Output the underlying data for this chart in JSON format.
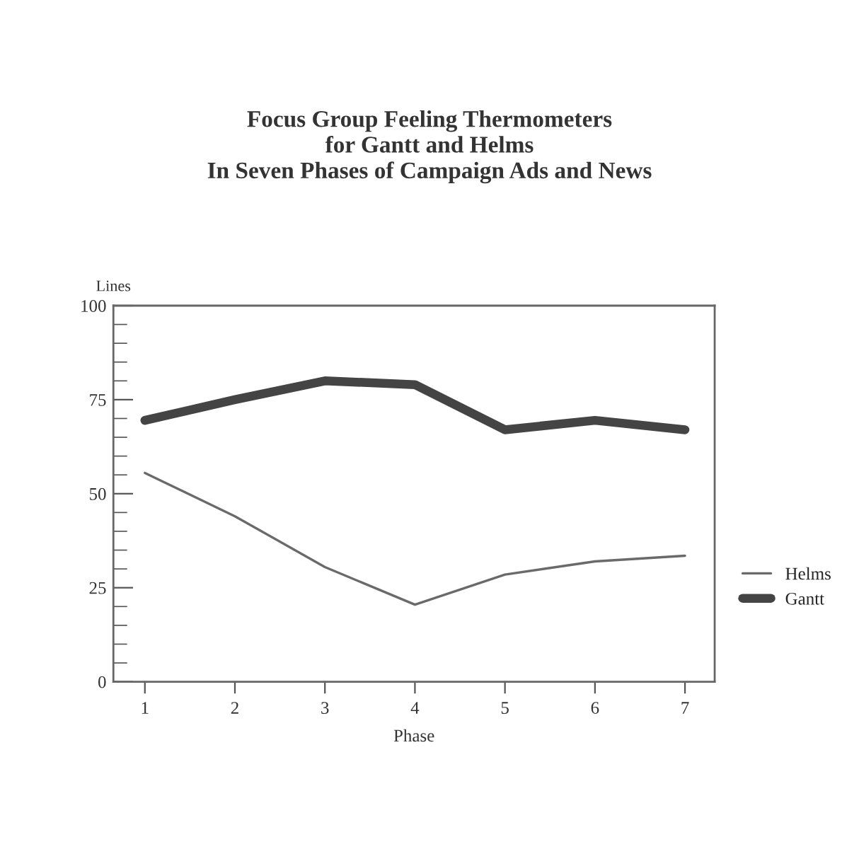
{
  "chart_data": {
    "type": "line",
    "title": "Focus Group Feeling Thermometers\nfor Gantt and Helms\nIn Seven Phases of Campaign Ads and News",
    "xlabel": "Phase",
    "ylabel": "Lines",
    "x": [
      1,
      2,
      3,
      4,
      5,
      6,
      7
    ],
    "series": [
      {
        "name": "Helms",
        "color": "#6a6a6a",
        "values": [
          55.5,
          44,
          30.5,
          20.5,
          28.5,
          32,
          33.5
        ]
      },
      {
        "name": "Gantt",
        "color": "#444444",
        "values": [
          69.5,
          75,
          80,
          79,
          67,
          69.5,
          67
        ]
      }
    ],
    "xlim": [
      0.65,
      7.33
    ],
    "xticks": [
      1,
      2,
      3,
      4,
      5,
      6,
      7
    ],
    "ylim": [
      0,
      100
    ],
    "yticks": [
      0,
      25,
      50,
      75,
      100
    ],
    "grid": false,
    "legend": "right",
    "marker": "none",
    "line_style": "solid"
  }
}
